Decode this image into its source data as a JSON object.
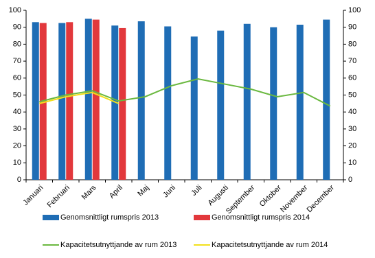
{
  "chart_data": {
    "type": "bar-line",
    "categories": [
      "Januari",
      "Februari",
      "Mars",
      "April",
      "Maj",
      "Juni",
      "Juli",
      "Augusti",
      "September",
      "Oktober",
      "November",
      "December"
    ],
    "series": [
      {
        "name": "Genomsnittligt rumspris 2013",
        "type": "bar",
        "color": "#1f6db5",
        "values": [
          93,
          92.5,
          95,
          91,
          93.5,
          90.5,
          84.5,
          88,
          92,
          90,
          91.5,
          94.5
        ]
      },
      {
        "name": "Genomsnittligt rumspris 2014",
        "type": "bar",
        "color": "#e2383c",
        "values": [
          92.5,
          93,
          94.5,
          89.5,
          null,
          null,
          null,
          null,
          null,
          null,
          null,
          null
        ]
      },
      {
        "name": "Kapacitetsutnyttjande av rum 2013",
        "type": "line",
        "axis": "y2",
        "color": "#6ab83f",
        "values": [
          46,
          50,
          52.5,
          46.5,
          49,
          55.5,
          59.5,
          56.5,
          53.5,
          49,
          51.5,
          43.5
        ]
      },
      {
        "name": "Kapacitetsutnyttjande av rum 2014",
        "type": "line",
        "axis": "y2",
        "color": "#f2e01a",
        "values": [
          45,
          49,
          51.5,
          45,
          null,
          null,
          null,
          null,
          null,
          null,
          null,
          null
        ]
      }
    ],
    "ylim": [
      0,
      100
    ],
    "yticks": [
      0,
      10,
      20,
      30,
      40,
      50,
      60,
      70,
      80,
      90,
      100
    ],
    "y2lim": [
      0,
      100
    ],
    "y2ticks": [
      0,
      10,
      20,
      30,
      40,
      50,
      60,
      70,
      80,
      90,
      100
    ],
    "grid": false,
    "legend": "bottom"
  }
}
